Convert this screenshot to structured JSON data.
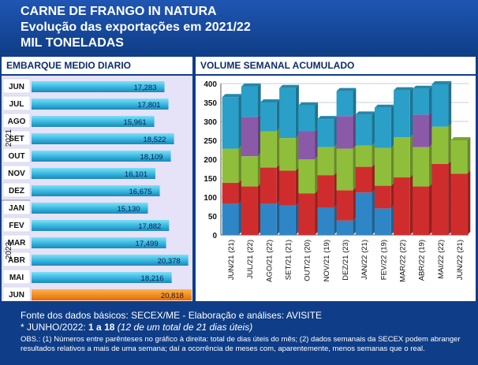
{
  "header": {
    "title1": "CARNE DE FRANGO IN NATURA",
    "title2": "Evolução das exportações em 2021/22",
    "title3": "MIL TONELADAS"
  },
  "sections": {
    "left": "EMBARQUE MEDIO DIARIO",
    "right": "VOLUME SEMANAL ACUMULADO"
  },
  "colors": {
    "blue": "#2f86c6",
    "red": "#cf2d2d",
    "green": "#8fbf3a",
    "purple": "#8a5aa8",
    "teal": "#2a9fc8",
    "cyan": "#35b6df",
    "orange": "#f07d10",
    "darkgreen": "#4b7d28"
  },
  "chart_data": [
    {
      "type": "bar",
      "orientation": "horizontal",
      "title": "EMBARQUE MEDIO DIARIO",
      "categories": [
        "JUN",
        "JUL",
        "AGO",
        "SET",
        "OUT",
        "NOV",
        "DEZ",
        "JAN",
        "FEV",
        "MAR",
        "ABR",
        "MAI",
        "JUN"
      ],
      "values": [
        17.283,
        17.801,
        15.961,
        18.522,
        18.109,
        16.101,
        16.675,
        15.13,
        17.882,
        17.499,
        20.378,
        18.216,
        20.818
      ],
      "labels": [
        "17,283",
        "17,801",
        "15,961",
        "18,522",
        "18,109",
        "16,101",
        "16,675",
        "15,130",
        "17,882",
        "17,499",
        "20,378",
        "18,216",
        "20,818"
      ],
      "groups": [
        {
          "name": "2021",
          "count": 7
        },
        {
          "name": "2022",
          "count": 6
        }
      ],
      "xlim": [
        0,
        24
      ]
    },
    {
      "type": "bar",
      "stacked": true,
      "title": "VOLUME SEMANAL ACUMULADO",
      "categories": [
        "JUN/21 (21)",
        "JUL/21 (22)",
        "AGO/21 (22)",
        "SET/21 (21)",
        "OUT/21 (20)",
        "NOV/21 (19)",
        "DEZ/21 (23)",
        "JAN/22 (21)",
        "FEV/22 (19)",
        "MAR/22 (22)",
        "ABR/22 (19)",
        "MAI/22 (22)",
        "JUN/22 (21)"
      ],
      "ylim": [
        0,
        400
      ],
      "yticks": [
        0,
        50,
        100,
        150,
        200,
        250,
        300,
        350,
        400
      ],
      "series": [
        {
          "color": "#2f86c6",
          "values": [
            82,
            0,
            82,
            78,
            0,
            72,
            38,
            112,
            70,
            0,
            0,
            0,
            0
          ]
        },
        {
          "color": "#cf2d2d",
          "values": [
            56,
            128,
            96,
            92,
            110,
            86,
            80,
            68,
            60,
            152,
            128,
            188,
            162
          ]
        },
        {
          "color": "#8fbf3a",
          "values": [
            90,
            80,
            96,
            86,
            90,
            74,
            110,
            56,
            100,
            106,
            104,
            98,
            88
          ]
        },
        {
          "color": "#8a5aa8",
          "values": [
            0,
            104,
            0,
            0,
            74,
            0,
            86,
            0,
            0,
            0,
            86,
            0,
            0
          ]
        },
        {
          "color": "#2a9fc8",
          "values": [
            136,
            80,
            76,
            132,
            68,
            74,
            66,
            82,
            106,
            124,
            68,
            112,
            0
          ]
        }
      ]
    }
  ],
  "footer": {
    "line1": "Fonte dos dados básicos: SECEX/ME - Elaboração e análises: AVISITE",
    "line2_prefix": "*  JUNHO/2022: ",
    "line2_value": "1 a 18",
    "line2_note": "(12 de um total de 21 dias úteis)",
    "line3": "OBS.: (1) Números entre parênteses no gráfico à direita: total de dias úteis do mês; (2) dados semanais da SECEX podem abranger resultados relativos a mais de uma semana; daí a ocorrência de meses com, aparentemente, menos semanas que o real."
  }
}
